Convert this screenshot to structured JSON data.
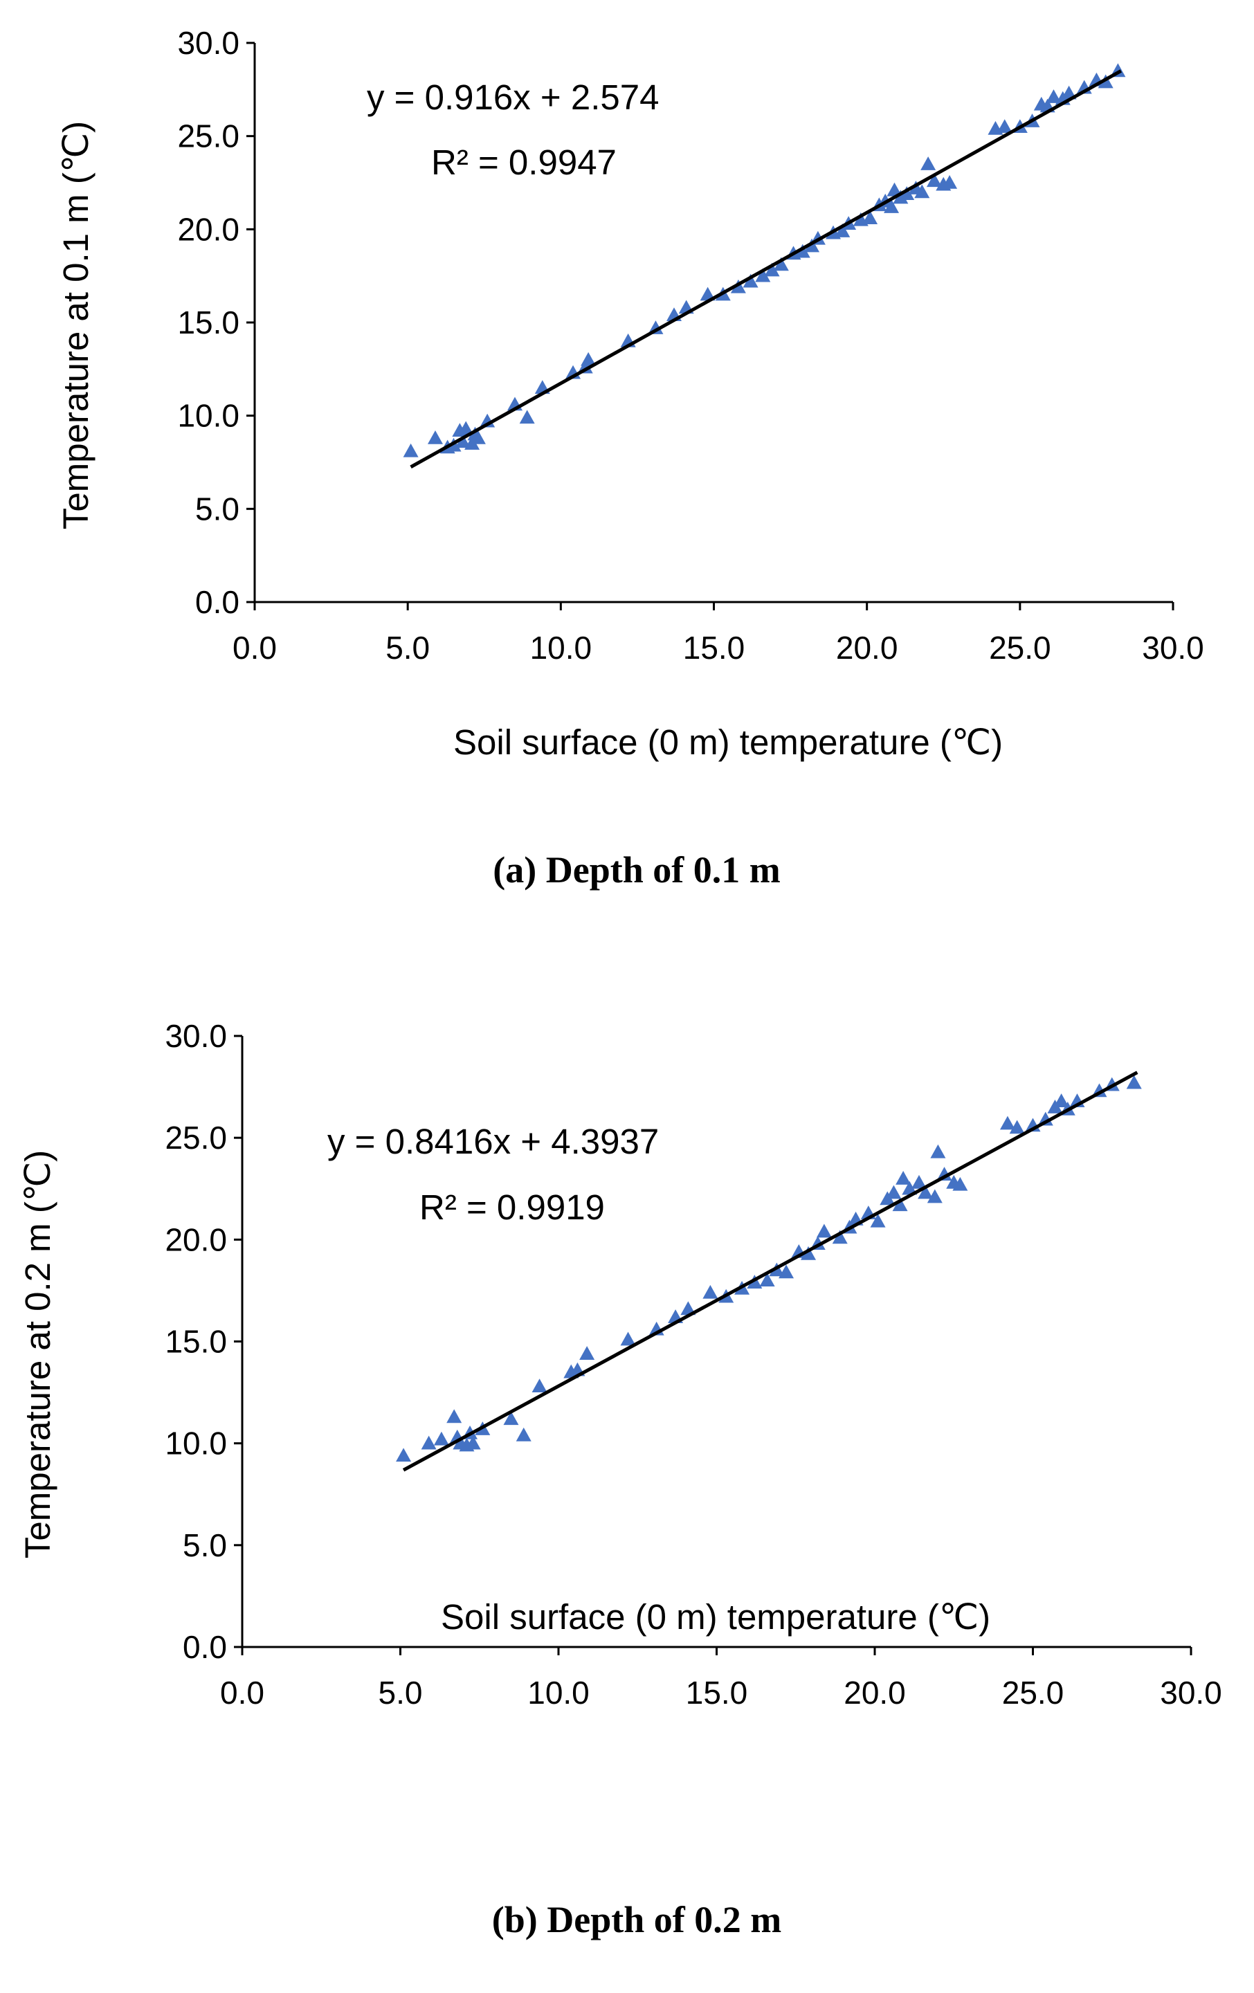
{
  "chart_data": [
    {
      "type": "scatter",
      "panel": "a",
      "caption": "(a) Depth of 0.1 m",
      "xlabel": "Soil surface (0 m)  temperature (℃)",
      "ylabel": "Temperature at 0.1 m (℃)",
      "xlim": [
        0,
        30
      ],
      "ylim": [
        0,
        30
      ],
      "x_ticks": [
        "0.0",
        "5.0",
        "10.0",
        "15.0",
        "20.0",
        "25.0",
        "30.0"
      ],
      "y_ticks": [
        "0.0",
        "5.0",
        "10.0",
        "15.0",
        "20.0",
        "25.0",
        "30.0"
      ],
      "equation": "y = 0.916x + 2.574",
      "r2": "R² = 0.9947",
      "trendline": {
        "slope": 0.916,
        "intercept": 2.574,
        "x_range": [
          5.1,
          28.3
        ]
      },
      "marker_color": "#4472C4",
      "series": [
        {
          "name": "observations",
          "points": [
            [
              5.1,
              8.1
            ],
            [
              5.9,
              8.8
            ],
            [
              6.3,
              8.3
            ],
            [
              6.5,
              8.4
            ],
            [
              6.7,
              9.2
            ],
            [
              6.8,
              8.6
            ],
            [
              6.9,
              9.3
            ],
            [
              7.1,
              8.5
            ],
            [
              7.2,
              9.0
            ],
            [
              7.3,
              8.8
            ],
            [
              7.6,
              9.7
            ],
            [
              8.5,
              10.6
            ],
            [
              8.9,
              9.9
            ],
            [
              9.4,
              11.5
            ],
            [
              10.4,
              12.3
            ],
            [
              10.8,
              12.6
            ],
            [
              10.9,
              13.0
            ],
            [
              12.2,
              14.0
            ],
            [
              13.1,
              14.7
            ],
            [
              13.7,
              15.4
            ],
            [
              14.1,
              15.8
            ],
            [
              14.8,
              16.5
            ],
            [
              15.3,
              16.5
            ],
            [
              15.8,
              16.9
            ],
            [
              16.2,
              17.2
            ],
            [
              16.6,
              17.5
            ],
            [
              16.9,
              17.8
            ],
            [
              17.2,
              18.1
            ],
            [
              17.6,
              18.7
            ],
            [
              17.9,
              18.8
            ],
            [
              18.2,
              19.1
            ],
            [
              18.4,
              19.5
            ],
            [
              18.9,
              19.8
            ],
            [
              19.2,
              19.9
            ],
            [
              19.4,
              20.3
            ],
            [
              19.8,
              20.5
            ],
            [
              20.1,
              20.6
            ],
            [
              20.4,
              21.3
            ],
            [
              20.6,
              21.5
            ],
            [
              20.8,
              21.2
            ],
            [
              20.9,
              22.1
            ],
            [
              21.1,
              21.7
            ],
            [
              21.3,
              21.9
            ],
            [
              21.6,
              22.2
            ],
            [
              21.8,
              22.0
            ],
            [
              22.0,
              23.5
            ],
            [
              22.2,
              22.6
            ],
            [
              22.5,
              22.4
            ],
            [
              22.7,
              22.5
            ],
            [
              24.2,
              25.4
            ],
            [
              24.5,
              25.5
            ],
            [
              25.0,
              25.5
            ],
            [
              25.4,
              25.8
            ],
            [
              25.7,
              26.7
            ],
            [
              25.9,
              26.6
            ],
            [
              26.1,
              27.1
            ],
            [
              26.4,
              27.0
            ],
            [
              26.6,
              27.3
            ],
            [
              27.1,
              27.6
            ],
            [
              27.5,
              28.0
            ],
            [
              27.8,
              27.9
            ],
            [
              28.2,
              28.5
            ]
          ]
        }
      ]
    },
    {
      "type": "scatter",
      "panel": "b",
      "caption": "(b) Depth of 0.2 m",
      "xlabel": "Soil surface (0 m)  temperature (℃)",
      "ylabel": "Temperature at 0.2 m (℃)",
      "xlim": [
        0,
        30
      ],
      "ylim": [
        0,
        30
      ],
      "x_ticks": [
        "0.0",
        "5.0",
        "10.0",
        "15.0",
        "20.0",
        "25.0",
        "30.0"
      ],
      "y_ticks": [
        "0.0",
        "5.0",
        "10.0",
        "15.0",
        "20.0",
        "25.0",
        "30.0"
      ],
      "equation": "y = 0.8416x + 4.3937",
      "r2": "R² = 0.9919",
      "trendline": {
        "slope": 0.8416,
        "intercept": 4.3937,
        "x_range": [
          5.1,
          28.3
        ]
      },
      "marker_color": "#4472C4",
      "series": [
        {
          "name": "observations",
          "points": [
            [
              5.1,
              9.4
            ],
            [
              5.9,
              10.0
            ],
            [
              6.3,
              10.2
            ],
            [
              6.7,
              11.3
            ],
            [
              6.8,
              10.3
            ],
            [
              6.9,
              10.0
            ],
            [
              7.1,
              9.9
            ],
            [
              7.2,
              10.5
            ],
            [
              7.3,
              10.0
            ],
            [
              7.6,
              10.7
            ],
            [
              8.5,
              11.2
            ],
            [
              8.9,
              10.4
            ],
            [
              9.4,
              12.8
            ],
            [
              10.4,
              13.5
            ],
            [
              10.6,
              13.6
            ],
            [
              10.9,
              14.4
            ],
            [
              12.2,
              15.1
            ],
            [
              13.1,
              15.6
            ],
            [
              13.7,
              16.2
            ],
            [
              14.1,
              16.6
            ],
            [
              14.8,
              17.4
            ],
            [
              15.3,
              17.2
            ],
            [
              15.8,
              17.6
            ],
            [
              16.2,
              17.9
            ],
            [
              16.6,
              18.0
            ],
            [
              16.9,
              18.5
            ],
            [
              17.2,
              18.4
            ],
            [
              17.6,
              19.4
            ],
            [
              17.9,
              19.3
            ],
            [
              18.2,
              19.8
            ],
            [
              18.4,
              20.4
            ],
            [
              18.9,
              20.1
            ],
            [
              19.2,
              20.6
            ],
            [
              19.4,
              21.0
            ],
            [
              19.8,
              21.3
            ],
            [
              20.1,
              20.9
            ],
            [
              20.4,
              22.0
            ],
            [
              20.6,
              22.3
            ],
            [
              20.8,
              21.7
            ],
            [
              20.9,
              23.0
            ],
            [
              21.1,
              22.5
            ],
            [
              21.4,
              22.8
            ],
            [
              21.6,
              22.3
            ],
            [
              21.9,
              22.1
            ],
            [
              22.0,
              24.3
            ],
            [
              22.2,
              23.2
            ],
            [
              22.5,
              22.8
            ],
            [
              22.7,
              22.7
            ],
            [
              24.2,
              25.7
            ],
            [
              24.5,
              25.5
            ],
            [
              25.0,
              25.6
            ],
            [
              25.4,
              25.9
            ],
            [
              25.7,
              26.5
            ],
            [
              25.9,
              26.8
            ],
            [
              26.1,
              26.4
            ],
            [
              26.4,
              26.8
            ],
            [
              27.1,
              27.3
            ],
            [
              27.5,
              27.6
            ],
            [
              28.2,
              27.7
            ]
          ]
        }
      ]
    }
  ]
}
